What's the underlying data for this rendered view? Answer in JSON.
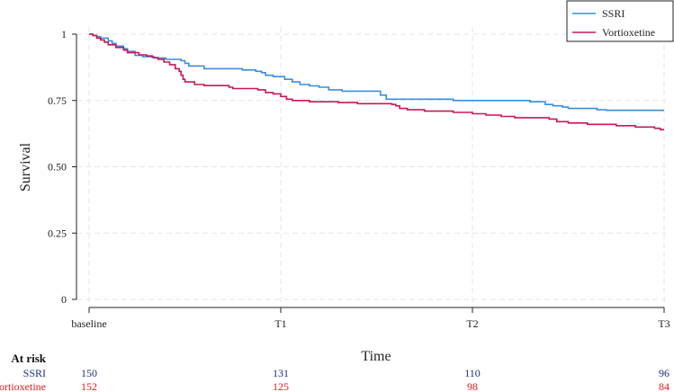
{
  "chart_data": {
    "type": "line",
    "title": "",
    "xlabel": "Time",
    "ylabel": "Survival",
    "x_ticks": [
      {
        "value": 0,
        "label": "baseline"
      },
      {
        "value": 1,
        "label": "T1"
      },
      {
        "value": 2,
        "label": "T2"
      },
      {
        "value": 3,
        "label": "T3"
      }
    ],
    "xlim": [
      0,
      3
    ],
    "ylim": [
      0,
      1
    ],
    "y_ticks": [
      0,
      0.25,
      0.5,
      0.75,
      1
    ],
    "y_tick_labels": [
      "0",
      "0.25",
      "0.50",
      "0.75",
      "1"
    ],
    "grid": true,
    "legend_position": "top-right",
    "series": [
      {
        "name": "SSRI",
        "color": "#3c8ddc",
        "points": [
          [
            0,
            1.0
          ],
          [
            0.02,
            0.995
          ],
          [
            0.04,
            0.99
          ],
          [
            0.06,
            0.985
          ],
          [
            0.1,
            0.975
          ],
          [
            0.12,
            0.965
          ],
          [
            0.14,
            0.955
          ],
          [
            0.18,
            0.945
          ],
          [
            0.2,
            0.935
          ],
          [
            0.24,
            0.92
          ],
          [
            0.28,
            0.915
          ],
          [
            0.34,
            0.91
          ],
          [
            0.4,
            0.905
          ],
          [
            0.45,
            0.905
          ],
          [
            0.48,
            0.9
          ],
          [
            0.5,
            0.89
          ],
          [
            0.52,
            0.88
          ],
          [
            0.6,
            0.87
          ],
          [
            0.8,
            0.865
          ],
          [
            0.87,
            0.86
          ],
          [
            0.9,
            0.855
          ],
          [
            0.92,
            0.845
          ],
          [
            0.96,
            0.84
          ],
          [
            1.02,
            0.83
          ],
          [
            1.06,
            0.82
          ],
          [
            1.1,
            0.81
          ],
          [
            1.15,
            0.805
          ],
          [
            1.2,
            0.8
          ],
          [
            1.25,
            0.79
          ],
          [
            1.32,
            0.785
          ],
          [
            1.5,
            0.785
          ],
          [
            1.52,
            0.77
          ],
          [
            1.55,
            0.755
          ],
          [
            1.8,
            0.755
          ],
          [
            1.9,
            0.75
          ],
          [
            2.3,
            0.745
          ],
          [
            2.38,
            0.735
          ],
          [
            2.42,
            0.73
          ],
          [
            2.47,
            0.725
          ],
          [
            2.5,
            0.72
          ],
          [
            2.65,
            0.715
          ],
          [
            2.7,
            0.713
          ],
          [
            3.0,
            0.713
          ]
        ],
        "risk": [
          150,
          131,
          110,
          96
        ]
      },
      {
        "name": "Vortioxetine",
        "color": "#c8184f",
        "points": [
          [
            0,
            1.0
          ],
          [
            0.02,
            0.995
          ],
          [
            0.04,
            0.985
          ],
          [
            0.06,
            0.978
          ],
          [
            0.08,
            0.97
          ],
          [
            0.1,
            0.96
          ],
          [
            0.14,
            0.95
          ],
          [
            0.18,
            0.94
          ],
          [
            0.2,
            0.93
          ],
          [
            0.26,
            0.922
          ],
          [
            0.3,
            0.918
          ],
          [
            0.33,
            0.912
          ],
          [
            0.36,
            0.905
          ],
          [
            0.39,
            0.895
          ],
          [
            0.42,
            0.885
          ],
          [
            0.45,
            0.87
          ],
          [
            0.47,
            0.86
          ],
          [
            0.48,
            0.845
          ],
          [
            0.49,
            0.83
          ],
          [
            0.5,
            0.82
          ],
          [
            0.55,
            0.81
          ],
          [
            0.6,
            0.806
          ],
          [
            0.73,
            0.8
          ],
          [
            0.75,
            0.795
          ],
          [
            0.88,
            0.79
          ],
          [
            0.92,
            0.78
          ],
          [
            0.96,
            0.775
          ],
          [
            1.0,
            0.765
          ],
          [
            1.03,
            0.755
          ],
          [
            1.06,
            0.75
          ],
          [
            1.15,
            0.745
          ],
          [
            1.3,
            0.742
          ],
          [
            1.4,
            0.738
          ],
          [
            1.55,
            0.738
          ],
          [
            1.58,
            0.735
          ],
          [
            1.6,
            0.73
          ],
          [
            1.62,
            0.72
          ],
          [
            1.66,
            0.715
          ],
          [
            1.75,
            0.71
          ],
          [
            1.9,
            0.705
          ],
          [
            2.0,
            0.7
          ],
          [
            2.07,
            0.695
          ],
          [
            2.15,
            0.69
          ],
          [
            2.22,
            0.685
          ],
          [
            2.4,
            0.68
          ],
          [
            2.44,
            0.67
          ],
          [
            2.5,
            0.665
          ],
          [
            2.6,
            0.66
          ],
          [
            2.75,
            0.655
          ],
          [
            2.85,
            0.65
          ],
          [
            2.95,
            0.645
          ],
          [
            2.98,
            0.64
          ],
          [
            3.0,
            0.64
          ]
        ],
        "risk": [
          152,
          125,
          98,
          84
        ]
      }
    ],
    "risk_table": {
      "header": "At risk",
      "rows": [
        {
          "label": "SSRI",
          "color": "#1f2f7f",
          "values": [
            150,
            131,
            110,
            96
          ]
        },
        {
          "label": "Vortioxetine",
          "color": "#e01a1a",
          "values": [
            152,
            125,
            98,
            84
          ]
        }
      ]
    }
  }
}
